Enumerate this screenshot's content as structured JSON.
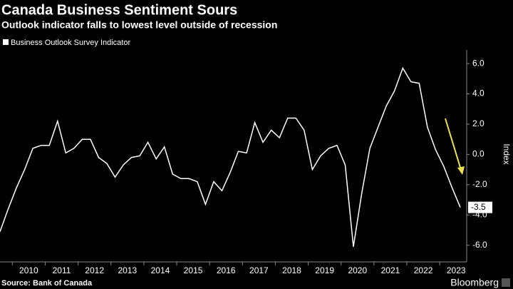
{
  "chart_data": {
    "type": "line",
    "title": "Canada Business Sentiment Sours",
    "subtitle": "Outlook indicator falls to lowest level outside of recession",
    "y_axis_label": "Index",
    "source": "Source: Bank of Canada",
    "brand": "Bloomberg",
    "categories": [
      null,
      null,
      "2010",
      null,
      null,
      null,
      "2011",
      null,
      null,
      null,
      "2012",
      null,
      null,
      null,
      "2013",
      null,
      null,
      null,
      "2014",
      null,
      null,
      null,
      "2015",
      null,
      null,
      null,
      "2016",
      null,
      null,
      null,
      "2017",
      null,
      null,
      null,
      "2018",
      null,
      null,
      null,
      "2019",
      null,
      null,
      null,
      "2020",
      null,
      null,
      null,
      "2021",
      null,
      null,
      null,
      "2022",
      null,
      null,
      null,
      "2023",
      null,
      null
    ],
    "series": [
      {
        "name": "Business Outlook Survey Indicator",
        "color": "#ffffff",
        "values": [
          -5.1,
          -3.6,
          -2.2,
          -1.0,
          0.4,
          0.6,
          0.6,
          2.2,
          0.1,
          0.4,
          1.0,
          1.0,
          -0.2,
          -0.6,
          -1.5,
          -0.7,
          -0.2,
          -0.1,
          0.8,
          -0.3,
          0.5,
          -1.3,
          -1.6,
          -1.6,
          -1.8,
          -3.3,
          -1.8,
          -2.4,
          -1.2,
          0.2,
          0.1,
          2.1,
          0.8,
          1.6,
          1.1,
          2.4,
          2.4,
          1.6,
          -1.0,
          -0.1,
          0.4,
          0.6,
          -0.7,
          -6.1,
          -2.6,
          0.4,
          1.8,
          3.2,
          4.2,
          5.7,
          4.8,
          4.7,
          1.8,
          0.3,
          -0.8,
          -2.2,
          -3.5
        ]
      }
    ],
    "ylim": [
      -7.1,
      6.9
    ],
    "yticks": [
      {
        "value": -6,
        "label": "-6.0"
      },
      {
        "value": -4,
        "label": "-4.0"
      },
      {
        "value": -2,
        "label": "-2.0"
      },
      {
        "value": 0,
        "label": "0.0"
      },
      {
        "value": 2,
        "label": "2.0"
      },
      {
        "value": 4,
        "label": "4.0"
      },
      {
        "value": 6,
        "label": "6.0"
      }
    ],
    "grid": false
  }
}
